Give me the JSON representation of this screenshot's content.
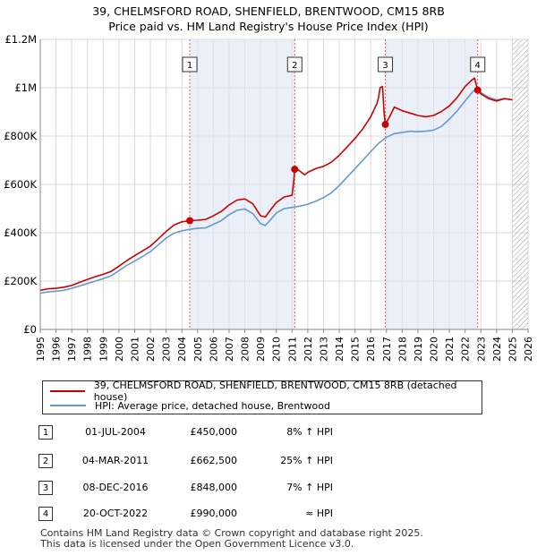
{
  "chart_data": {
    "type": "line",
    "title": "39, CHELMSFORD ROAD, SHENFIELD, BRENTWOOD, CM15 8RB",
    "subtitle": "Price paid vs. HM Land Registry's House Price Index (HPI)",
    "xlim": [
      1995,
      2026
    ],
    "ylim": [
      0,
      1200000
    ],
    "y_ticks": [
      0,
      200000,
      400000,
      600000,
      800000,
      1000000,
      1200000
    ],
    "y_tick_labels": [
      "£0",
      "£200K",
      "£400K",
      "£600K",
      "£800K",
      "£1M",
      "£1.2M"
    ],
    "x_ticks": [
      "1995",
      "1996",
      "1997",
      "1998",
      "1999",
      "2000",
      "2001",
      "2002",
      "2003",
      "2004",
      "2005",
      "2006",
      "2007",
      "2008",
      "2009",
      "2010",
      "2011",
      "2012",
      "2013",
      "2014",
      "2015",
      "2016",
      "2017",
      "2018",
      "2019",
      "2020",
      "2021",
      "2022",
      "2023",
      "2024",
      "2025",
      "2026"
    ],
    "forecast_from": 2025.0,
    "shaded_periods": [
      [
        2004.5,
        2011.17
      ],
      [
        2016.93,
        2022.8
      ]
    ],
    "series": [
      {
        "name": "39, CHELMSFORD ROAD, SHENFIELD, BRENTWOOD, CM15 8RB (detached house)",
        "color": "#cc0000",
        "points": [
          [
            1995.0,
            162000
          ],
          [
            1995.5,
            168000
          ],
          [
            1996.0,
            170000
          ],
          [
            1996.5,
            175000
          ],
          [
            1997.0,
            182000
          ],
          [
            1997.5,
            195000
          ],
          [
            1998.0,
            207000
          ],
          [
            1998.5,
            218000
          ],
          [
            1999.0,
            228000
          ],
          [
            1999.5,
            240000
          ],
          [
            2000.0,
            262000
          ],
          [
            2000.5,
            285000
          ],
          [
            2001.0,
            305000
          ],
          [
            2001.5,
            325000
          ],
          [
            2002.0,
            345000
          ],
          [
            2002.5,
            375000
          ],
          [
            2003.0,
            405000
          ],
          [
            2003.5,
            432000
          ],
          [
            2004.0,
            445000
          ],
          [
            2004.5,
            450000
          ],
          [
            2005.0,
            452000
          ],
          [
            2005.5,
            455000
          ],
          [
            2006.0,
            470000
          ],
          [
            2006.5,
            488000
          ],
          [
            2007.0,
            515000
          ],
          [
            2007.5,
            535000
          ],
          [
            2008.0,
            540000
          ],
          [
            2008.5,
            520000
          ],
          [
            2009.0,
            470000
          ],
          [
            2009.3,
            465000
          ],
          [
            2009.7,
            500000
          ],
          [
            2010.0,
            525000
          ],
          [
            2010.5,
            548000
          ],
          [
            2011.0,
            555000
          ],
          [
            2011.1,
            605000
          ],
          [
            2011.17,
            662500
          ],
          [
            2011.4,
            660000
          ],
          [
            2011.8,
            640000
          ],
          [
            2012.0,
            650000
          ],
          [
            2012.5,
            665000
          ],
          [
            2013.0,
            675000
          ],
          [
            2013.5,
            692000
          ],
          [
            2014.0,
            720000
          ],
          [
            2014.5,
            755000
          ],
          [
            2015.0,
            790000
          ],
          [
            2015.5,
            830000
          ],
          [
            2016.0,
            880000
          ],
          [
            2016.4,
            935000
          ],
          [
            2016.5,
            960000
          ],
          [
            2016.6,
            1000000
          ],
          [
            2016.75,
            1005000
          ],
          [
            2016.85,
            900000
          ],
          [
            2016.93,
            848000
          ],
          [
            2017.2,
            880000
          ],
          [
            2017.5,
            920000
          ],
          [
            2018.0,
            905000
          ],
          [
            2018.5,
            895000
          ],
          [
            2019.0,
            885000
          ],
          [
            2019.5,
            880000
          ],
          [
            2020.0,
            885000
          ],
          [
            2020.5,
            902000
          ],
          [
            2021.0,
            925000
          ],
          [
            2021.5,
            960000
          ],
          [
            2022.0,
            1005000
          ],
          [
            2022.4,
            1030000
          ],
          [
            2022.6,
            1040000
          ],
          [
            2022.8,
            990000
          ],
          [
            2023.0,
            975000
          ],
          [
            2023.5,
            955000
          ],
          [
            2024.0,
            945000
          ],
          [
            2024.5,
            955000
          ],
          [
            2025.0,
            950000
          ]
        ]
      },
      {
        "name": "HPI: Average price, detached house, Brentwood",
        "color": "#6699cc",
        "points": [
          [
            1995.0,
            150000
          ],
          [
            1995.5,
            155000
          ],
          [
            1996.0,
            158000
          ],
          [
            1996.5,
            162000
          ],
          [
            1997.0,
            170000
          ],
          [
            1997.5,
            180000
          ],
          [
            1998.0,
            190000
          ],
          [
            1998.5,
            200000
          ],
          [
            1999.0,
            210000
          ],
          [
            1999.5,
            222000
          ],
          [
            2000.0,
            243000
          ],
          [
            2000.5,
            265000
          ],
          [
            2001.0,
            283000
          ],
          [
            2001.5,
            302000
          ],
          [
            2002.0,
            322000
          ],
          [
            2002.5,
            350000
          ],
          [
            2003.0,
            378000
          ],
          [
            2003.5,
            398000
          ],
          [
            2004.0,
            408000
          ],
          [
            2004.5,
            414000
          ],
          [
            2005.0,
            418000
          ],
          [
            2005.5,
            420000
          ],
          [
            2006.0,
            435000
          ],
          [
            2006.5,
            450000
          ],
          [
            2007.0,
            475000
          ],
          [
            2007.5,
            493000
          ],
          [
            2008.0,
            498000
          ],
          [
            2008.5,
            480000
          ],
          [
            2009.0,
            438000
          ],
          [
            2009.3,
            430000
          ],
          [
            2009.7,
            458000
          ],
          [
            2010.0,
            482000
          ],
          [
            2010.5,
            500000
          ],
          [
            2011.0,
            505000
          ],
          [
            2011.5,
            510000
          ],
          [
            2012.0,
            518000
          ],
          [
            2012.5,
            530000
          ],
          [
            2013.0,
            545000
          ],
          [
            2013.5,
            565000
          ],
          [
            2014.0,
            595000
          ],
          [
            2014.5,
            630000
          ],
          [
            2015.0,
            665000
          ],
          [
            2015.5,
            700000
          ],
          [
            2016.0,
            735000
          ],
          [
            2016.5,
            770000
          ],
          [
            2017.0,
            795000
          ],
          [
            2017.5,
            810000
          ],
          [
            2018.0,
            815000
          ],
          [
            2018.5,
            820000
          ],
          [
            2019.0,
            818000
          ],
          [
            2019.5,
            820000
          ],
          [
            2020.0,
            825000
          ],
          [
            2020.5,
            840000
          ],
          [
            2021.0,
            870000
          ],
          [
            2021.5,
            905000
          ],
          [
            2022.0,
            945000
          ],
          [
            2022.5,
            985000
          ],
          [
            2022.8,
            995000
          ],
          [
            2023.0,
            980000
          ],
          [
            2023.5,
            960000
          ],
          [
            2024.0,
            950000
          ],
          [
            2024.5,
            955000
          ],
          [
            2025.0,
            950000
          ]
        ]
      }
    ],
    "sales": [
      {
        "id": "1",
        "x": 2004.5,
        "price": 450000
      },
      {
        "id": "2",
        "x": 2011.17,
        "price": 662500
      },
      {
        "id": "3",
        "x": 2016.93,
        "price": 848000
      },
      {
        "id": "4",
        "x": 2022.8,
        "price": 990000
      }
    ]
  },
  "legend": {
    "property_label": "39, CHELMSFORD ROAD, SHENFIELD, BRENTWOOD, CM15 8RB (detached house)",
    "hpi_label": "HPI: Average price, detached house, Brentwood",
    "property_color": "#cc0000",
    "hpi_color": "#6699cc"
  },
  "sales_table": [
    {
      "num": "1",
      "date": "01-JUL-2004",
      "price": "£450,000",
      "hpi": "8% ↑ HPI"
    },
    {
      "num": "2",
      "date": "04-MAR-2011",
      "price": "£662,500",
      "hpi": "25% ↑ HPI"
    },
    {
      "num": "3",
      "date": "08-DEC-2016",
      "price": "£848,000",
      "hpi": "7% ↑ HPI"
    },
    {
      "num": "4",
      "date": "20-OCT-2022",
      "price": "£990,000",
      "hpi": "≈ HPI"
    }
  ],
  "footer": {
    "line1": "Contains HM Land Registry data © Crown copyright and database right 2025.",
    "line2": "This data is licensed under the Open Government Licence v3.0."
  }
}
